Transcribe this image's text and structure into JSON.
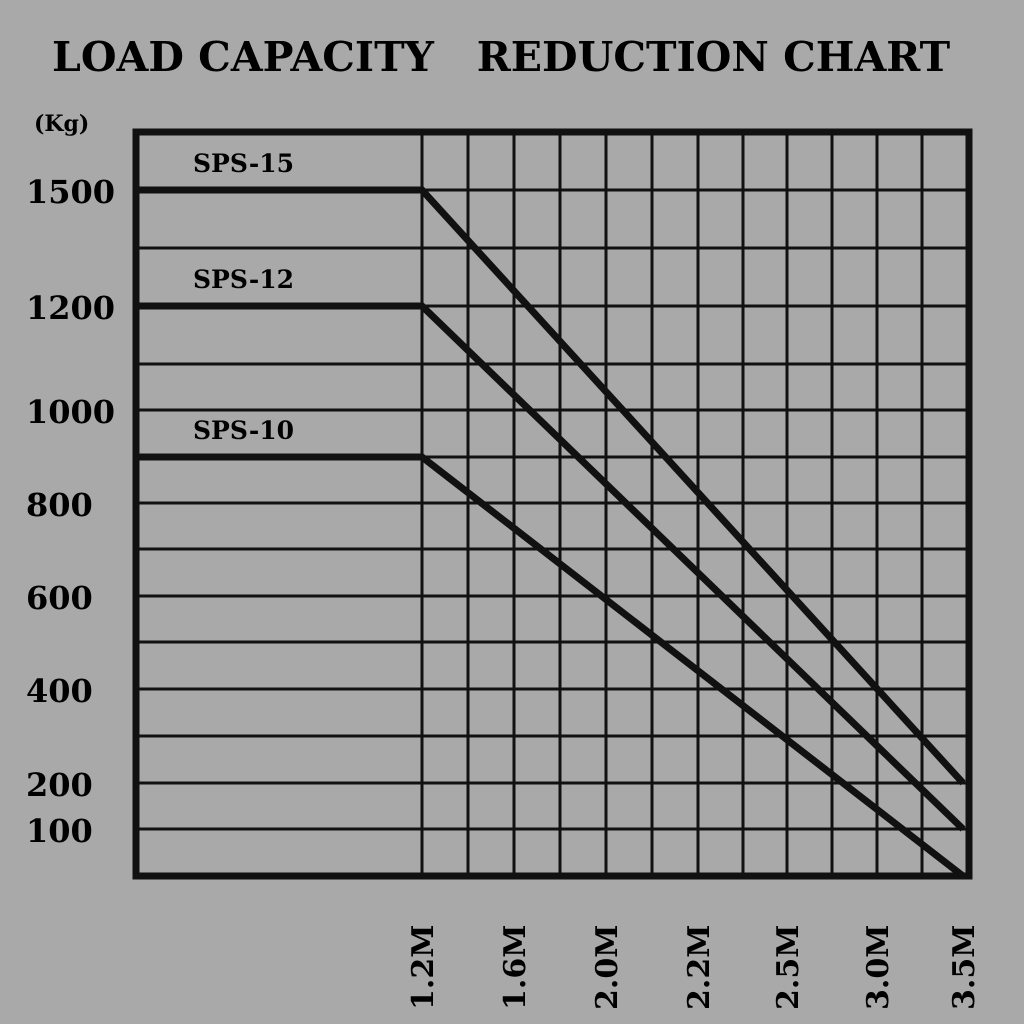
{
  "chart_data": {
    "type": "line",
    "title": "LOAD CAPACITY   REDUCTION CHART",
    "ylabel": "(Kg)",
    "xlabel": "",
    "y_tick_labels": [
      "1500",
      "1200",
      "1000",
      "800",
      "600",
      "400",
      "200",
      "100"
    ],
    "x_tick_labels": [
      "1.2M",
      "1.6M",
      "2.0M",
      "2.2M",
      "2.5M",
      "3.0M",
      "3.5M"
    ],
    "grid": true,
    "series": [
      {
        "name": "SPS-15",
        "points": [
          [
            "0",
            1500
          ],
          [
            "1.2M",
            1500
          ],
          [
            "3.5M",
            200
          ]
        ]
      },
      {
        "name": "SPS-12",
        "points": [
          [
            "0",
            1200
          ],
          [
            "1.2M",
            1200
          ],
          [
            "3.5M",
            100
          ]
        ]
      },
      {
        "name": "SPS-10",
        "points": [
          [
            "0",
            900
          ],
          [
            "1.2M",
            900
          ],
          [
            "3.5M",
            0
          ]
        ]
      }
    ],
    "colors": {
      "background": "#a9a9a9",
      "ink": "#111111"
    }
  }
}
